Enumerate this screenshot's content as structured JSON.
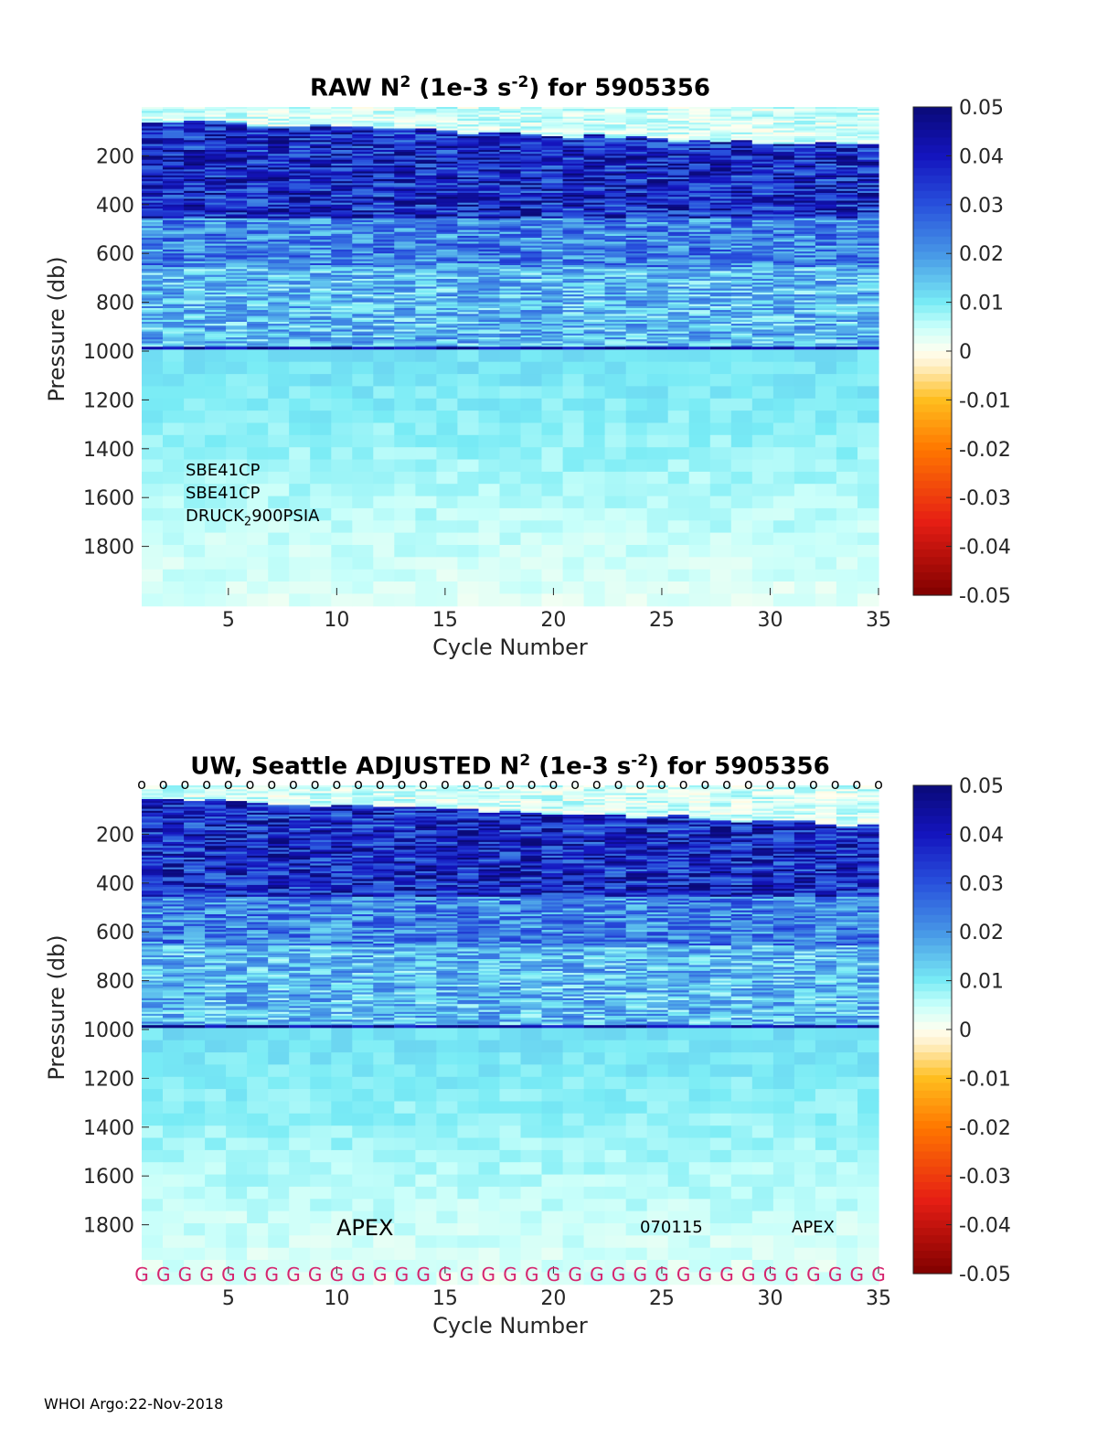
{
  "chart_data": [
    {
      "type": "heatmap",
      "title_main": "RAW N",
      "title_sup": "2",
      "title_mid": " (1e-3 s",
      "title_sup2": "-2",
      "title_end": ") for 5905356",
      "xlabel": "Cycle Number",
      "ylabel": "Pressure (db)",
      "xlim": [
        1,
        35
      ],
      "ylim": [
        2000,
        0
      ],
      "x_ticks": [
        5,
        10,
        15,
        20,
        25,
        30,
        35
      ],
      "y_ticks": [
        200,
        400,
        600,
        800,
        1000,
        1200,
        1400,
        1600,
        1800
      ],
      "colorbar": {
        "min": -0.05,
        "max": 0.05,
        "ticks": [
          "0.05",
          "0.04",
          "0.03",
          "0.02",
          "0.01",
          "0",
          "-0.01",
          "-0.02",
          "-0.03",
          "-0.04",
          "-0.05"
        ]
      },
      "annotations": [
        "SBE41CP",
        "SBE41CP",
        "DRUCK",
        "2",
        "900PSIA"
      ]
    },
    {
      "type": "heatmap",
      "title_main": "UW, Seattle  ADJUSTED N",
      "title_sup": "2",
      "title_mid": " (1e-3 s",
      "title_sup2": "-2",
      "title_end": ") for 5905356",
      "xlabel": "Cycle Number",
      "ylabel": "Pressure (db)",
      "xlim": [
        1,
        35
      ],
      "ylim": [
        2000,
        0
      ],
      "x_ticks": [
        5,
        10,
        15,
        20,
        25,
        30,
        35
      ],
      "y_ticks": [
        200,
        400,
        600,
        800,
        1000,
        1200,
        1400,
        1600,
        1800
      ],
      "colorbar": {
        "min": -0.05,
        "max": 0.05,
        "ticks": [
          "0.05",
          "0.04",
          "0.03",
          "0.02",
          "0.01",
          "0",
          "-0.01",
          "-0.02",
          "-0.03",
          "-0.04",
          "-0.05"
        ]
      },
      "annotations": [
        "APEX",
        "070115",
        "APEX"
      ],
      "qc_flag": "G",
      "top_marker": "o",
      "cycles": 35
    }
  ],
  "footer": "WHOI Argo:22-Nov-2018"
}
